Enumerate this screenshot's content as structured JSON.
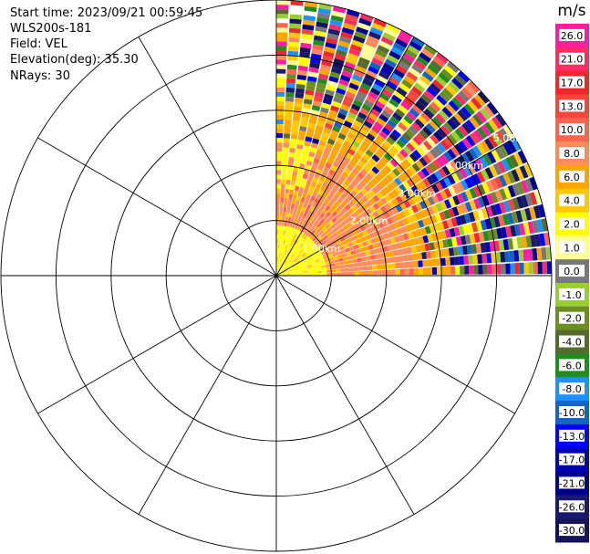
{
  "header": {
    "start_time": "Start time: 2023/09/21 00:59:45",
    "instrument": "WLS200s-181",
    "field": "Field: VEL",
    "elevation": "Elevation(deg): 35.30",
    "nrays": "NRays: 30"
  },
  "chart_data": {
    "type": "heatmap",
    "projection": "polar",
    "title": "",
    "range_rings_labels": [
      "1.00km",
      "2.00km",
      "3.00km",
      "4.00km",
      "5.00km"
    ],
    "range_rings_km": [
      1,
      2,
      3,
      4,
      5
    ],
    "max_range_km": 5,
    "azimuth_spokes_deg": [
      0,
      30,
      60,
      90,
      120,
      150,
      180,
      210,
      240,
      270,
      300,
      330
    ],
    "sector_azimuth_deg": [
      0,
      90
    ],
    "nrays": 30,
    "colorbar": {
      "unit": "m/s",
      "ticks": [
        "26.0",
        "21.0",
        "17.0",
        "13.0",
        "10.0",
        "8.0",
        "6.0",
        "4.0",
        "2.0",
        "1.0",
        "0.0",
        "-1.0",
        "-2.0",
        "-4.0",
        "-6.0",
        "-8.0",
        "-10.0",
        "-13.0",
        "-17.0",
        "-21.0",
        "-26.0",
        "-30.0"
      ],
      "colors": [
        "#ff1ea0",
        "#ff2d63",
        "#f0282d",
        "#f5463c",
        "#ff6450",
        "#ff8c5a",
        "#ffa500",
        "#ffc800",
        "#ffff00",
        "#ffff96",
        "#787878",
        "#9acd32",
        "#6b8e23",
        "#556b2f",
        "#228b22",
        "#1e90ff",
        "#1464c8",
        "#0000ff",
        "#0000b4",
        "#00008b",
        "#191970",
        "#14145a"
      ]
    }
  }
}
